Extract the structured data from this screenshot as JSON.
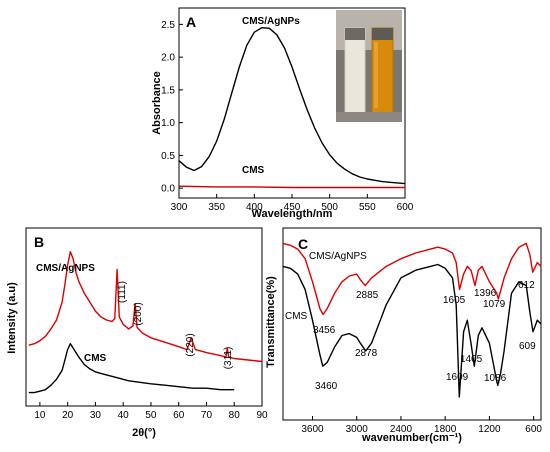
{
  "panel_labels": [
    "A",
    "B",
    "C"
  ],
  "chart_data": [
    {
      "id": "A",
      "type": "line",
      "xlabel": "Wavelength/nm",
      "ylabel": "Absorbance",
      "xlim": [
        300,
        600
      ],
      "ylim": [
        -0.15,
        2.75
      ],
      "xticks": [
        300,
        350,
        400,
        450,
        500,
        550,
        600
      ],
      "yticks": [
        0.0,
        0.5,
        1.0,
        1.5,
        2.0,
        2.5
      ],
      "ytick_labels": [
        "0.0",
        "0.5",
        "1.0",
        "1.5",
        "2.0",
        "2.5"
      ],
      "grid": false,
      "series": [
        {
          "name": "CMS/AgNPs",
          "color": "#000000",
          "x": [
            300,
            310,
            320,
            330,
            340,
            350,
            360,
            370,
            380,
            390,
            400,
            410,
            420,
            430,
            440,
            450,
            460,
            470,
            480,
            490,
            500,
            510,
            520,
            530,
            540,
            550,
            560,
            570,
            580,
            590,
            600
          ],
          "y": [
            0.42,
            0.32,
            0.27,
            0.33,
            0.48,
            0.72,
            1.05,
            1.45,
            1.85,
            2.18,
            2.38,
            2.45,
            2.44,
            2.34,
            2.14,
            1.85,
            1.52,
            1.2,
            0.92,
            0.69,
            0.51,
            0.38,
            0.29,
            0.22,
            0.17,
            0.14,
            0.12,
            0.1,
            0.09,
            0.08,
            0.07
          ]
        },
        {
          "name": "CMS",
          "color": "#cc0000",
          "x": [
            300,
            350,
            400,
            450,
            500,
            550,
            600
          ],
          "y": [
            0.03,
            0.02,
            0.02,
            0.01,
            0.01,
            0.01,
            0.01
          ]
        }
      ]
    },
    {
      "id": "B",
      "type": "line",
      "xlabel": "2θ(°)",
      "ylabel": "Intensity  (a.u)",
      "xlim": [
        5,
        90
      ],
      "ylim": [
        0,
        120
      ],
      "xticks": [
        10,
        20,
        30,
        40,
        50,
        60,
        70,
        80,
        90
      ],
      "grid": false,
      "series": [
        {
          "name": "CMS/AgNPS",
          "color": "#dd0000",
          "x": [
            6,
            8,
            10,
            12,
            14,
            16,
            18,
            19,
            20,
            21,
            22,
            23,
            24,
            26,
            28,
            30,
            32,
            34,
            36,
            37,
            37.8,
            38.6,
            40,
            42,
            43.5,
            44.3,
            45,
            47,
            50,
            55,
            60,
            63,
            64.5,
            66,
            70,
            75,
            77,
            77.5,
            78,
            80,
            85,
            90
          ],
          "y": [
            41,
            42,
            44,
            47,
            52,
            58,
            70,
            82,
            95,
            104,
            99,
            90,
            84,
            76,
            70,
            64,
            60,
            58,
            57,
            59,
            92,
            60,
            55,
            52,
            54,
            69,
            53,
            49,
            46,
            43,
            40,
            38,
            46,
            38,
            36,
            34,
            33,
            39,
            33,
            32,
            31,
            30
          ]
        },
        {
          "name": "CMS",
          "color": "#000000",
          "x": [
            6,
            8,
            10,
            12,
            14,
            16,
            18,
            19,
            20,
            21,
            22,
            24,
            26,
            28,
            30,
            34,
            38,
            42,
            46,
            50,
            55,
            60,
            65,
            70,
            75,
            80
          ],
          "y": [
            9,
            9,
            10,
            11,
            14,
            18,
            24,
            31,
            38,
            42,
            39,
            33,
            28,
            25,
            23,
            21,
            19,
            17,
            16,
            15,
            14,
            13,
            12,
            12,
            11,
            11
          ]
        }
      ],
      "annotations": [
        "(111)",
        "(200)",
        "(220)",
        "(311)"
      ]
    },
    {
      "id": "C",
      "type": "line",
      "xlabel": "wavenumber(cm⁻¹)",
      "ylabel": "Transmittance(%)",
      "xlim": [
        4000,
        500
      ],
      "ylim": [
        0,
        100
      ],
      "xticks": [
        3600,
        3000,
        2400,
        1800,
        1200,
        600
      ],
      "grid": false,
      "series": [
        {
          "name": "CMS/AgNPS",
          "color": "#dd0000",
          "x": [
            4000,
            3900,
            3800,
            3700,
            3600,
            3500,
            3456,
            3400,
            3300,
            3200,
            3100,
            3000,
            2950,
            2885,
            2800,
            2600,
            2400,
            2200,
            2000,
            1900,
            1800,
            1700,
            1650,
            1605,
            1550,
            1500,
            1450,
            1396,
            1350,
            1300,
            1200,
            1150,
            1100,
            1079,
            1050,
            1000,
            900,
            800,
            700,
            650,
            612,
            550,
            500
          ],
          "y": [
            92,
            91,
            89,
            84,
            72,
            58,
            55,
            58,
            66,
            72,
            75,
            76,
            73,
            70,
            74,
            80,
            84,
            87,
            89,
            90,
            89,
            87,
            82,
            68,
            76,
            80,
            78,
            70,
            78,
            80,
            72,
            69,
            66,
            63,
            67,
            74,
            84,
            90,
            92,
            86,
            77,
            82,
            80
          ]
        },
        {
          "name": "CMS",
          "color": "#000000",
          "x": [
            4000,
            3900,
            3800,
            3700,
            3600,
            3500,
            3460,
            3400,
            3300,
            3200,
            3100,
            3000,
            2950,
            2878,
            2800,
            2600,
            2400,
            2200,
            2000,
            1900,
            1800,
            1700,
            1650,
            1609,
            1550,
            1500,
            1450,
            1405,
            1350,
            1300,
            1200,
            1150,
            1100,
            1086,
            1050,
            1000,
            900,
            800,
            700,
            650,
            609,
            550,
            500
          ],
          "y": [
            80,
            79,
            76,
            68,
            52,
            34,
            28,
            30,
            38,
            44,
            45,
            43,
            40,
            36,
            40,
            60,
            74,
            78,
            80,
            81,
            79,
            74,
            60,
            12,
            46,
            52,
            40,
            28,
            44,
            48,
            40,
            30,
            20,
            18,
            24,
            36,
            66,
            72,
            70,
            56,
            46,
            52,
            50
          ]
        }
      ],
      "annotations": [
        "3456",
        "2885",
        "1605",
        "1396",
        "1079",
        "612",
        "3460",
        "2878",
        "1609",
        "1405",
        "1086",
        "609"
      ]
    }
  ]
}
